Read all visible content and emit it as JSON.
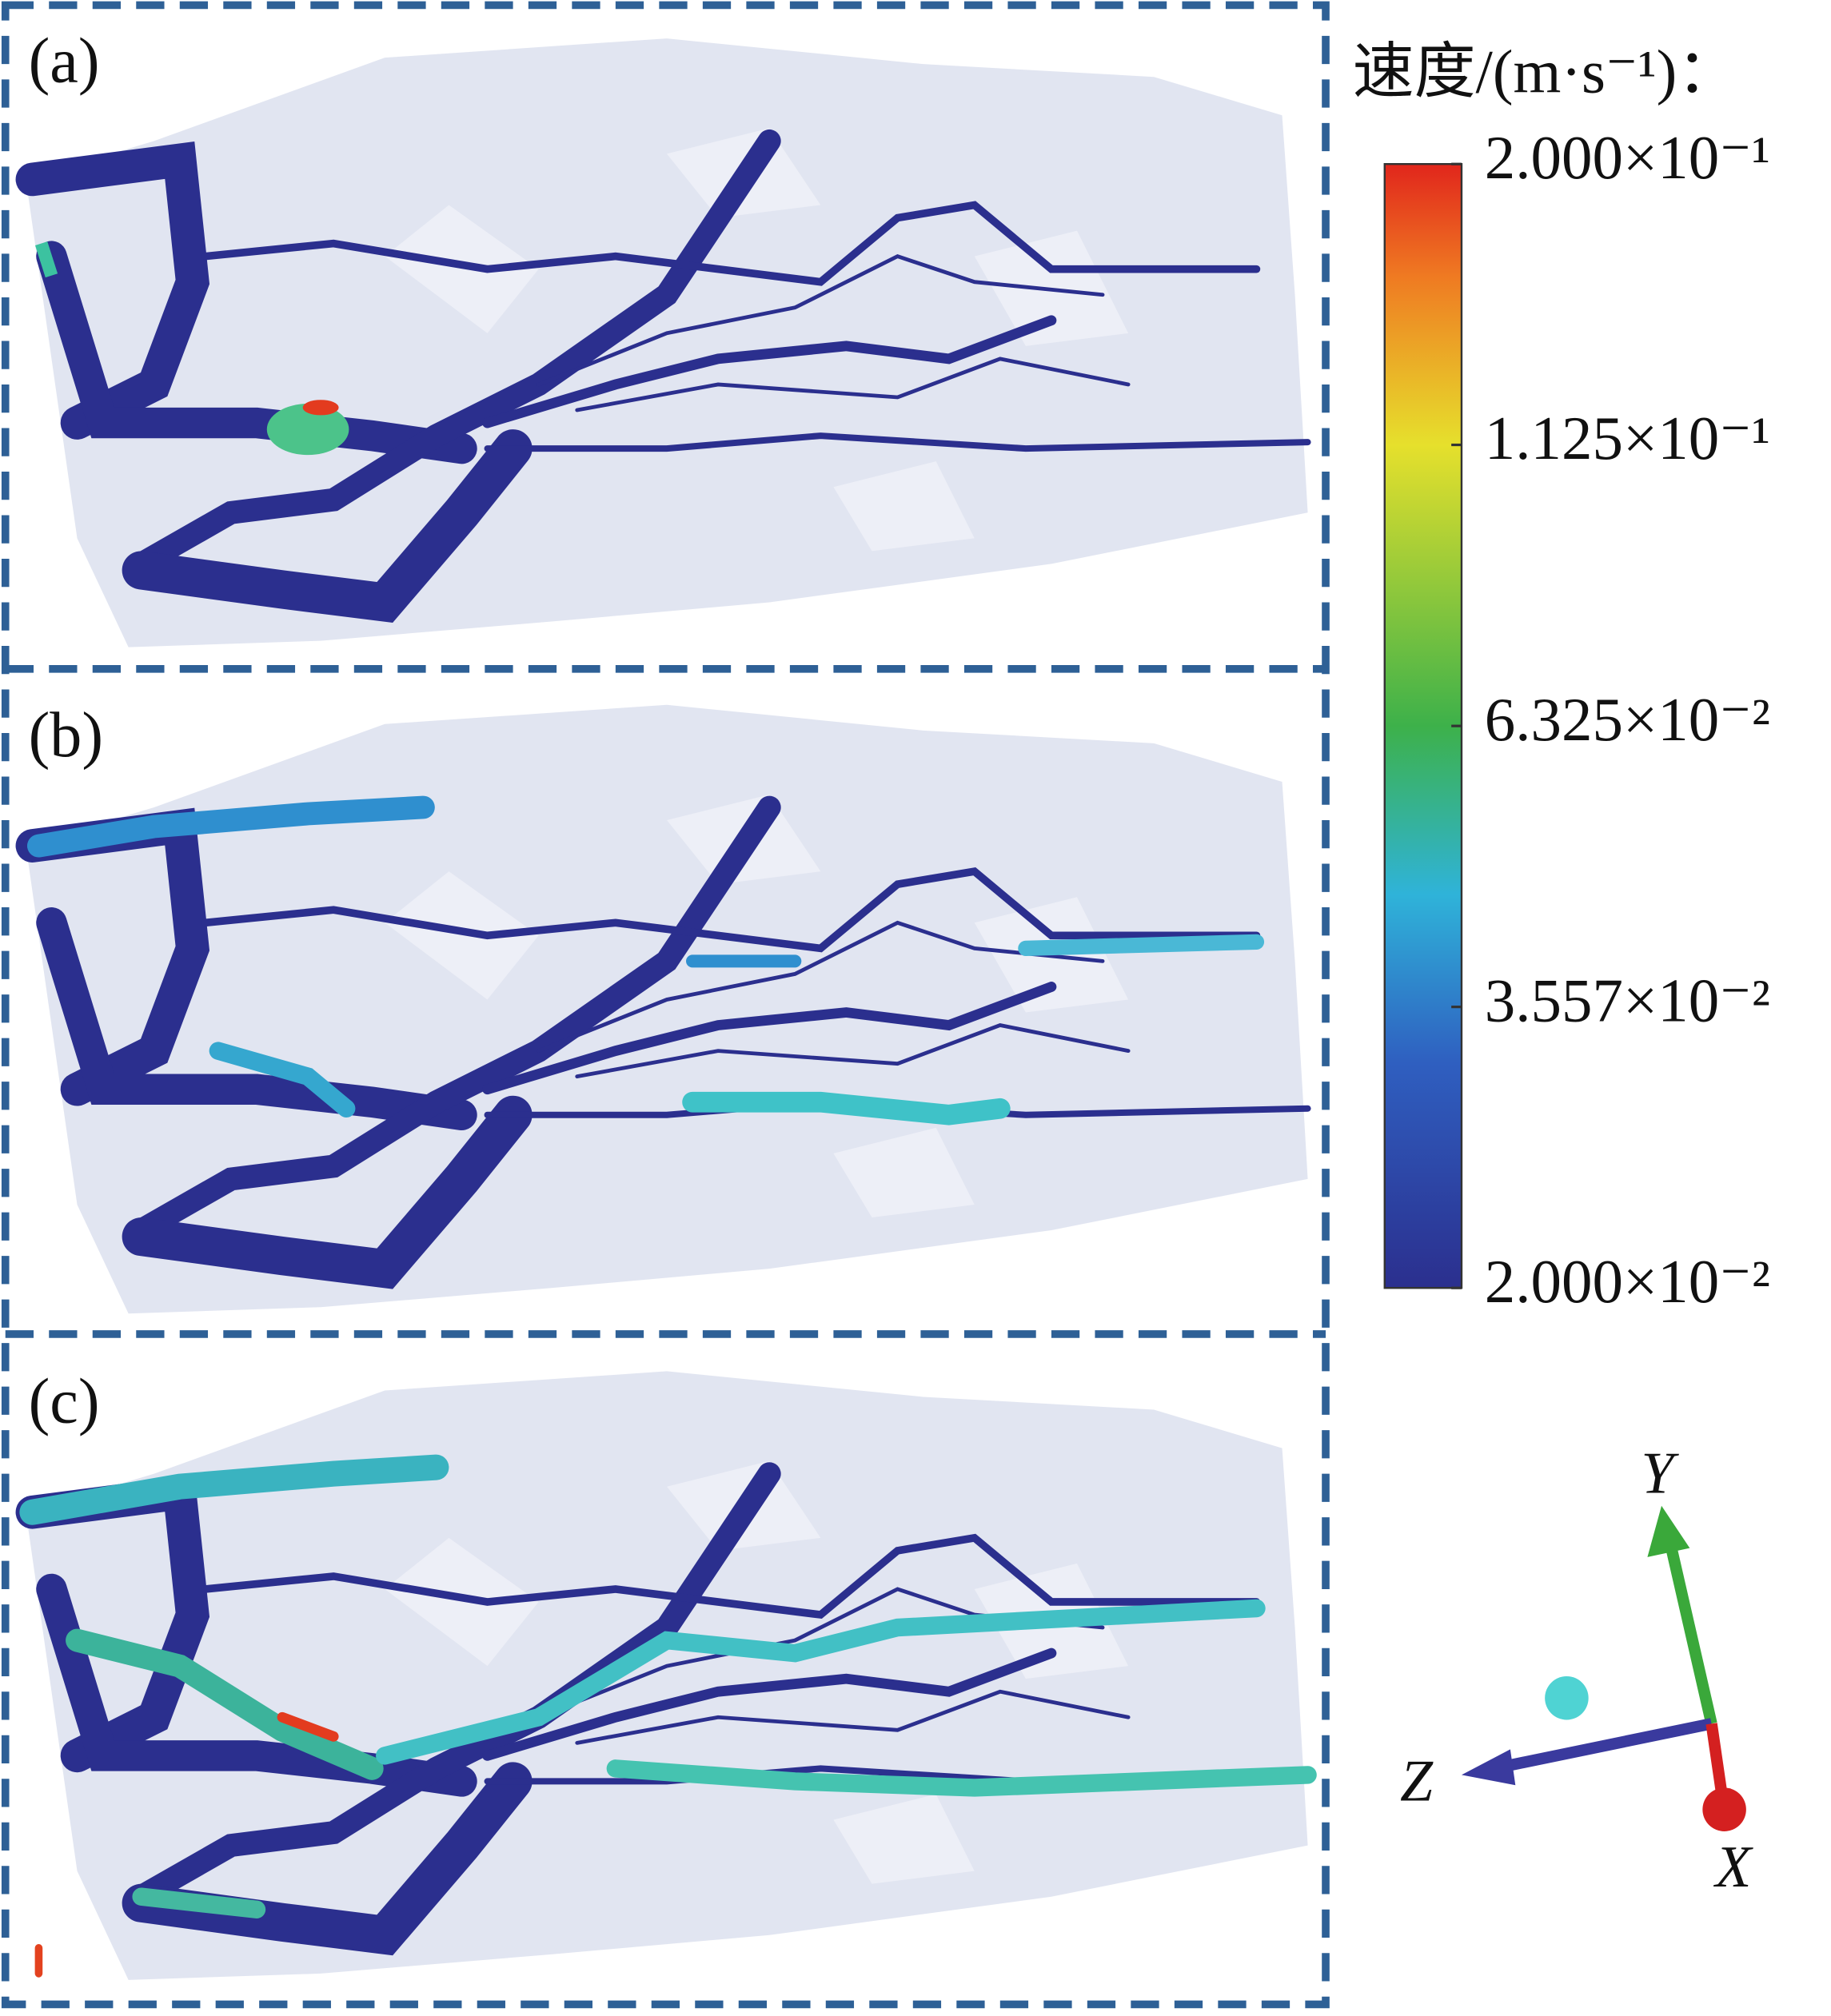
{
  "panels": [
    {
      "label": "(a)"
    },
    {
      "label": "(b)"
    },
    {
      "label": "(c)"
    }
  ],
  "colorbar": {
    "title": "速度/(m·s⁻¹)：",
    "log_scale": true,
    "range": [
      0.02,
      0.2
    ],
    "ticks": [
      {
        "value": 0.2,
        "label": "2.000×10⁻¹"
      },
      {
        "value": 0.1125,
        "label": "1.125×10⁻¹"
      },
      {
        "value": 0.06325,
        "label": "6.325×10⁻²"
      },
      {
        "value": 0.03557,
        "label": "3.557×10⁻²"
      },
      {
        "value": 0.02,
        "label": "2.000×10⁻²"
      }
    ]
  },
  "axes_triad": {
    "y": "Y",
    "z": "Z",
    "x": "X"
  }
}
